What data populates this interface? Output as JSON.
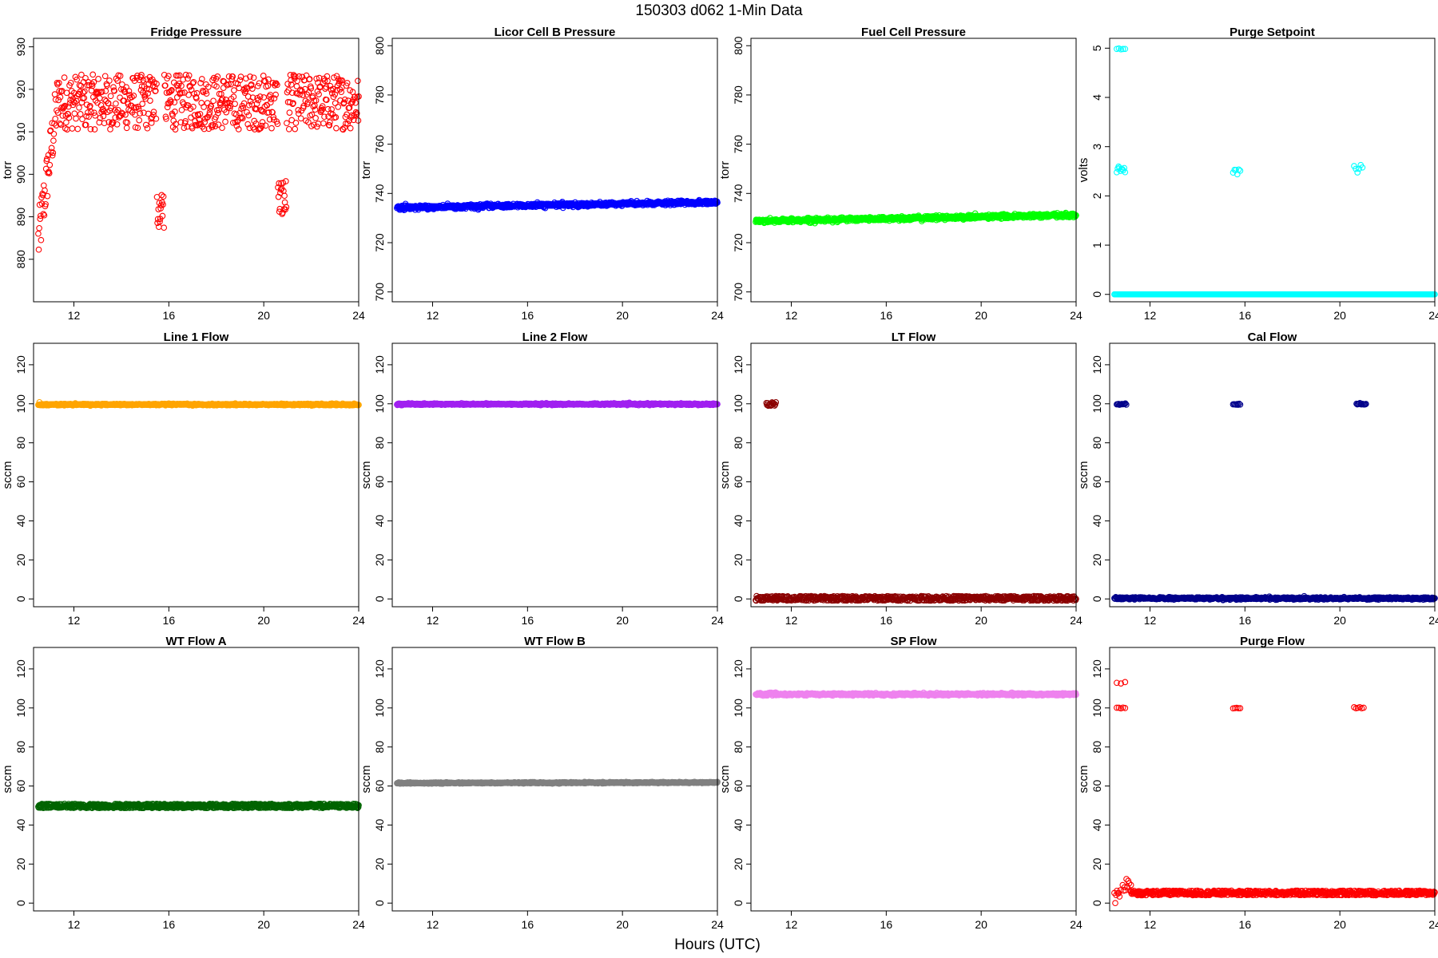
{
  "figure": {
    "title": "150303   d062   1-Min Data",
    "xlabel": "Hours (UTC)"
  },
  "chart_data": [
    {
      "type": "scatter",
      "title": "Fridge Pressure",
      "ylabel": "torr",
      "color": "#ff0000",
      "marker": "open-circle",
      "xlim": [
        10.3,
        24
      ],
      "ylim": [
        870,
        932
      ],
      "xticks": [
        12,
        16,
        20,
        24
      ],
      "yticks": [
        880,
        890,
        900,
        910,
        920,
        930
      ],
      "series": [
        {
          "model": "noisy",
          "base": 917,
          "noise": 6.5,
          "n": 700,
          "x_start": 10.5,
          "x_end": 24,
          "start_ramp": {
            "x0": 10.5,
            "x1": 11.3,
            "y0": 884
          },
          "dips": [
            {
              "x0": 15.5,
              "x1": 15.8,
              "y": 892
            },
            {
              "x0": 20.6,
              "x1": 20.95,
              "y": 894
            }
          ]
        }
      ]
    },
    {
      "type": "scatter",
      "title": "Licor Cell B Pressure",
      "ylabel": "torr",
      "color": "#0000ff",
      "marker": "open-circle",
      "xlim": [
        10.3,
        24
      ],
      "ylim": [
        696,
        803
      ],
      "xticks": [
        12,
        16,
        20,
        24
      ],
      "yticks": [
        700,
        720,
        740,
        760,
        780,
        800
      ],
      "series": [
        {
          "model": "line",
          "x_start": 10.5,
          "x_end": 24,
          "y_start": 734.2,
          "y_end": 736.4,
          "noise": 0.4,
          "n": 900
        }
      ]
    },
    {
      "type": "scatter",
      "title": "Fuel Cell Pressure",
      "ylabel": "torr",
      "color": "#00ff00",
      "marker": "open-circle",
      "xlim": [
        10.3,
        24
      ],
      "ylim": [
        696,
        803
      ],
      "xticks": [
        12,
        16,
        20,
        24
      ],
      "yticks": [
        700,
        720,
        740,
        760,
        780,
        800
      ],
      "series": [
        {
          "model": "line",
          "x_start": 10.5,
          "x_end": 24,
          "y_start": 728.8,
          "y_end": 731.2,
          "noise": 0.4,
          "n": 900
        }
      ]
    },
    {
      "type": "scatter",
      "title": "Purge Setpoint",
      "ylabel": "volts",
      "color": "#00ffff",
      "marker": "open-circle",
      "xlim": [
        10.3,
        24
      ],
      "ylim": [
        -0.15,
        5.2
      ],
      "xticks": [
        12,
        16,
        20,
        24
      ],
      "yticks": [
        0,
        1,
        2,
        3,
        4,
        5
      ],
      "series": [
        {
          "model": "line",
          "x_start": 10.5,
          "x_end": 24,
          "y_start": 0,
          "y_end": 0,
          "noise": 0,
          "n": 400
        },
        {
          "model": "cluster",
          "x0": 10.6,
          "x1": 10.95,
          "y": 4.98,
          "noise": 0.01,
          "n": 5
        },
        {
          "model": "cluster",
          "x0": 10.6,
          "x1": 10.95,
          "y": 2.55,
          "noise": 0.05,
          "n": 10
        },
        {
          "model": "cluster",
          "x0": 15.5,
          "x1": 15.8,
          "y": 2.52,
          "noise": 0.03,
          "n": 6
        },
        {
          "model": "cluster",
          "x0": 20.6,
          "x1": 20.95,
          "y": 2.54,
          "noise": 0.04,
          "n": 6
        }
      ]
    },
    {
      "type": "scatter",
      "title": "Line 1 Flow",
      "ylabel": "sccm",
      "color": "#ffa500",
      "marker": "open-circle",
      "xlim": [
        10.3,
        24
      ],
      "ylim": [
        -4,
        131
      ],
      "xticks": [
        12,
        16,
        20,
        24
      ],
      "yticks": [
        0,
        20,
        40,
        60,
        80,
        100,
        120
      ],
      "series": [
        {
          "model": "line",
          "x_start": 10.5,
          "x_end": 24,
          "y_start": 99.6,
          "y_end": 99.6,
          "noise": 0.2,
          "n": 900
        },
        {
          "model": "cluster",
          "x0": 10.55,
          "x1": 10.6,
          "y": 100.8,
          "noise": 0,
          "n": 1
        }
      ]
    },
    {
      "type": "scatter",
      "title": "Line 2 Flow",
      "ylabel": "sccm",
      "color": "#a020f0",
      "marker": "open-circle",
      "xlim": [
        10.3,
        24
      ],
      "ylim": [
        -4,
        131
      ],
      "xticks": [
        12,
        16,
        20,
        24
      ],
      "yticks": [
        0,
        20,
        40,
        60,
        80,
        100,
        120
      ],
      "series": [
        {
          "model": "line",
          "x_start": 10.5,
          "x_end": 24,
          "y_start": 99.8,
          "y_end": 99.8,
          "noise": 0.2,
          "n": 900
        }
      ]
    },
    {
      "type": "scatter",
      "title": "LT Flow",
      "ylabel": "sccm",
      "color": "#8b0000",
      "marker": "open-circle",
      "xlim": [
        10.3,
        24
      ],
      "ylim": [
        -4,
        131
      ],
      "xticks": [
        12,
        16,
        20,
        24
      ],
      "yticks": [
        0,
        20,
        40,
        60,
        80,
        100,
        120
      ],
      "series": [
        {
          "model": "noisy",
          "base": 0.3,
          "noise": 1.2,
          "n": 700,
          "x_start": 10.5,
          "x_end": 24
        },
        {
          "model": "cluster",
          "x0": 10.95,
          "x1": 11.35,
          "y": 99.8,
          "noise": 0.8,
          "n": 16
        }
      ]
    },
    {
      "type": "scatter",
      "title": "Cal Flow",
      "ylabel": "sccm",
      "color": "#00008b",
      "marker": "open-circle",
      "xlim": [
        10.3,
        24
      ],
      "ylim": [
        -4,
        131
      ],
      "xticks": [
        12,
        16,
        20,
        24
      ],
      "yticks": [
        0,
        20,
        40,
        60,
        80,
        100,
        120
      ],
      "series": [
        {
          "model": "line",
          "x_start": 10.5,
          "x_end": 24,
          "y_start": 0.3,
          "y_end": 0.3,
          "noise": 0.3,
          "n": 700
        },
        {
          "model": "cluster",
          "x0": 10.6,
          "x1": 11.0,
          "y": 99.8,
          "noise": 0.2,
          "n": 12
        },
        {
          "model": "cluster",
          "x0": 15.5,
          "x1": 15.8,
          "y": 99.8,
          "noise": 0.2,
          "n": 8
        },
        {
          "model": "cluster",
          "x0": 20.7,
          "x1": 21.1,
          "y": 99.8,
          "noise": 0.2,
          "n": 12
        }
      ]
    },
    {
      "type": "scatter",
      "title": "WT Flow A",
      "ylabel": "sccm",
      "color": "#006400",
      "marker": "open-circle",
      "xlim": [
        10.3,
        24
      ],
      "ylim": [
        -4,
        131
      ],
      "xticks": [
        12,
        16,
        20,
        24
      ],
      "yticks": [
        0,
        20,
        40,
        60,
        80,
        100,
        120
      ],
      "series": [
        {
          "model": "noisy",
          "base": 49.8,
          "noise": 1.1,
          "n": 900,
          "x_start": 10.5,
          "x_end": 24
        }
      ]
    },
    {
      "type": "scatter",
      "title": "WT Flow B",
      "ylabel": "sccm",
      "color": "#808080",
      "marker": "open-circle",
      "xlim": [
        10.3,
        24
      ],
      "ylim": [
        -4,
        131
      ],
      "xticks": [
        12,
        16,
        20,
        24
      ],
      "yticks": [
        0,
        20,
        40,
        60,
        80,
        100,
        120
      ],
      "series": [
        {
          "model": "line",
          "x_start": 10.5,
          "x_end": 24,
          "y_start": 61.5,
          "y_end": 61.8,
          "noise": 0.15,
          "n": 900
        }
      ]
    },
    {
      "type": "scatter",
      "title": "SP Flow",
      "ylabel": "sccm",
      "color": "#ee82ee",
      "marker": "open-circle",
      "xlim": [
        10.3,
        24
      ],
      "ylim": [
        -4,
        131
      ],
      "xticks": [
        12,
        16,
        20,
        24
      ],
      "yticks": [
        0,
        20,
        40,
        60,
        80,
        100,
        120
      ],
      "series": [
        {
          "model": "line",
          "x_start": 10.5,
          "x_end": 24,
          "y_start": 107.0,
          "y_end": 107.0,
          "noise": 0.3,
          "n": 900
        },
        {
          "model": "cluster",
          "x0": 11.1,
          "x1": 11.4,
          "y": 107.8,
          "noise": 0.3,
          "n": 6
        }
      ]
    },
    {
      "type": "scatter",
      "title": "Purge Flow",
      "ylabel": "sccm",
      "color": "#ff0000",
      "marker": "open-circle",
      "xlim": [
        10.3,
        24
      ],
      "ylim": [
        -4,
        131
      ],
      "xticks": [
        12,
        16,
        20,
        24
      ],
      "yticks": [
        0,
        20,
        40,
        60,
        80,
        100,
        120
      ],
      "series": [
        {
          "model": "noisy",
          "base": 5.2,
          "noise": 1.2,
          "n": 700,
          "x_start": 11.2,
          "x_end": 24
        },
        {
          "model": "cluster",
          "x0": 10.5,
          "x1": 10.75,
          "y": 5,
          "noise": 2,
          "n": 8
        },
        {
          "model": "cluster",
          "x0": 10.85,
          "x1": 11.2,
          "y": 9,
          "noise": 1.8,
          "n": 10
        },
        {
          "model": "cluster",
          "x0": 10.6,
          "x1": 10.95,
          "y": 100,
          "noise": 0.2,
          "n": 5
        },
        {
          "model": "cluster",
          "x0": 10.6,
          "x1": 10.95,
          "y": 112.5,
          "noise": 0.4,
          "n": 3
        },
        {
          "model": "cluster",
          "x0": 15.5,
          "x1": 15.8,
          "y": 100,
          "noise": 0.2,
          "n": 5
        },
        {
          "model": "cluster",
          "x0": 20.6,
          "x1": 21.0,
          "y": 100,
          "noise": 0.2,
          "n": 6
        }
      ]
    }
  ]
}
